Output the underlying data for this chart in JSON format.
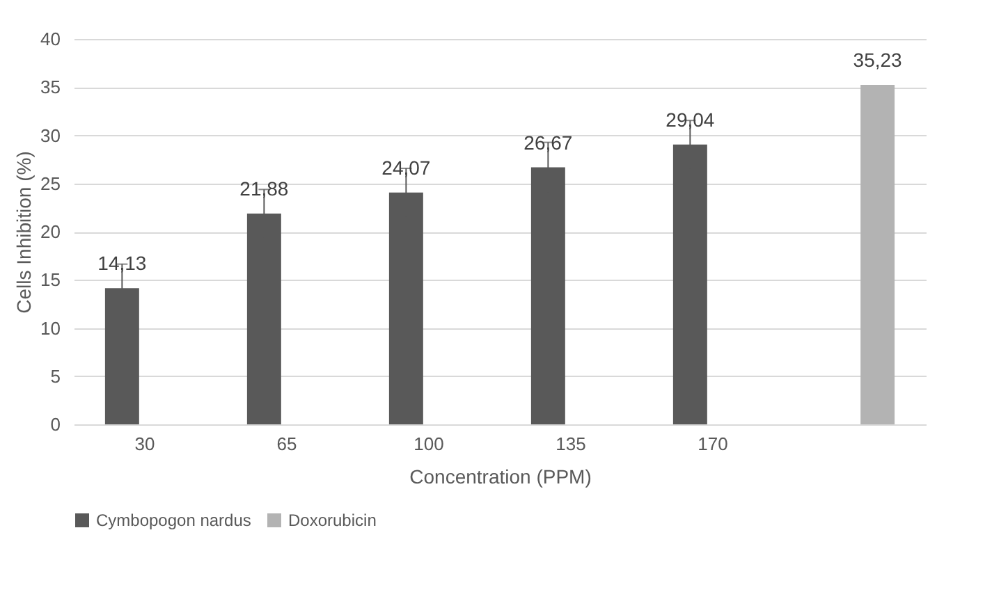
{
  "chart_data": {
    "type": "bar",
    "xlabel": "Concentration (PPM)",
    "ylabel": "Cells Inhibition (%)",
    "categories": [
      "30",
      "65",
      "100",
      "135",
      "170",
      null
    ],
    "series": [
      {
        "name": "Cymbopogon nardus",
        "color": "#595959",
        "values": [
          14.13,
          21.88,
          24.07,
          26.67,
          29.04,
          null
        ],
        "errors": [
          2.5,
          2.5,
          2.5,
          2.6,
          2.5,
          null
        ],
        "value_labels": [
          "14,13",
          "21,88",
          "24,07",
          "26,67",
          "29,04",
          null
        ]
      },
      {
        "name": "Doxorubicin",
        "color": "#b3b3b3",
        "values": [
          null,
          null,
          null,
          null,
          null,
          35.23
        ],
        "value_labels": [
          null,
          null,
          null,
          null,
          null,
          "35,23"
        ]
      }
    ],
    "ylim": [
      0,
      40
    ],
    "yticks": [
      0,
      5,
      10,
      15,
      20,
      25,
      30,
      35,
      40
    ],
    "grid": "y",
    "legend": "bottom"
  }
}
